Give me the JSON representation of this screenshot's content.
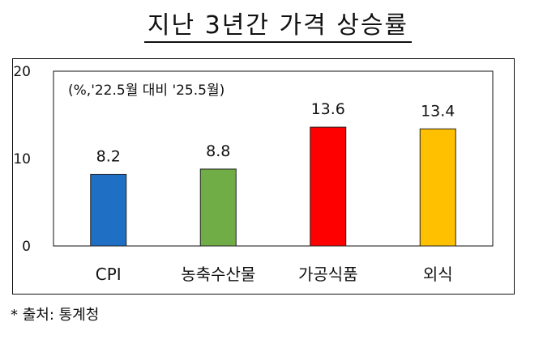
{
  "title": "지난 3년간 가격 상승률",
  "source": "* 출처: 통계청",
  "chart_data": {
    "type": "bar",
    "annotation": "(%,'22.5월 대비 '25.5월)",
    "categories": [
      "CPI",
      "농축수산물",
      "가공식품",
      "외식"
    ],
    "values": [
      8.2,
      8.8,
      13.6,
      13.4
    ],
    "value_labels": [
      "8.2",
      "8.8",
      "13.6",
      "13.4"
    ],
    "bar_colors": [
      "#1F6FC5",
      "#70AD47",
      "#FF0000",
      "#FFC000"
    ],
    "yticks": [
      0,
      10,
      20
    ],
    "ylim": [
      0,
      20
    ],
    "grid": false,
    "legend": "none"
  }
}
